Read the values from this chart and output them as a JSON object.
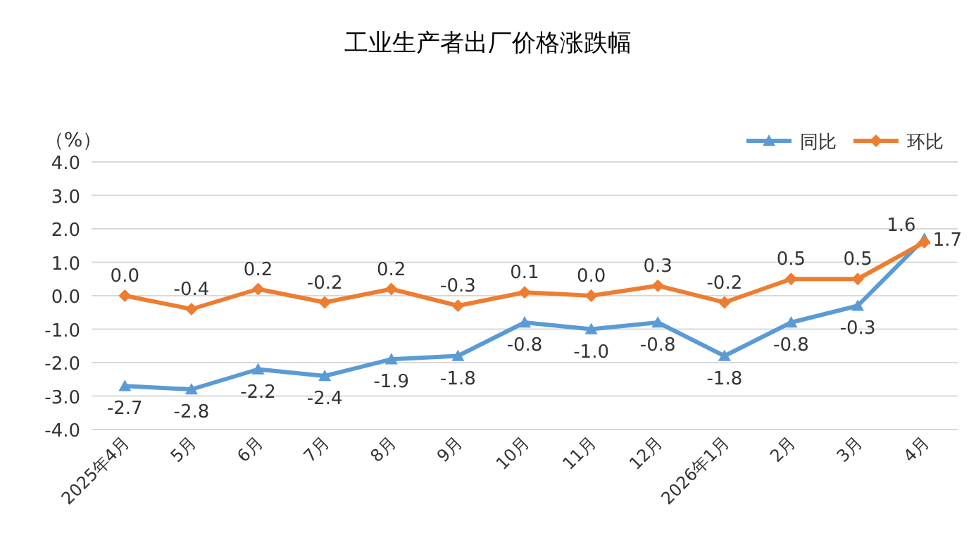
{
  "chart_data": {
    "type": "line",
    "title": "工业生产者出厂价格涨跌幅",
    "ylabel": "（%）",
    "categories": [
      "2025年4月",
      "5月",
      "6月",
      "7月",
      "8月",
      "9月",
      "10月",
      "11月",
      "12月",
      "2026年1月",
      "2月",
      "3月",
      "4月"
    ],
    "series": [
      {
        "name": "同比",
        "color": "#5b9bd5",
        "marker": "triangle",
        "values": [
          -2.7,
          -2.8,
          -2.2,
          -2.4,
          -1.9,
          -1.8,
          -0.8,
          -1.0,
          -0.8,
          -1.8,
          -0.8,
          -0.3,
          1.7
        ],
        "value_labels": [
          "-2.7",
          "-2.8",
          "-2.2",
          "-2.4",
          "-1.9",
          "-1.8",
          "-0.8",
          "-1.0",
          "-0.8",
          "-1.8",
          "-0.8",
          "-0.3",
          "1.7"
        ]
      },
      {
        "name": "环比",
        "color": "#ed7d31",
        "marker": "diamond",
        "values": [
          0.0,
          -0.4,
          0.2,
          -0.2,
          0.2,
          -0.3,
          0.1,
          0.0,
          0.3,
          -0.2,
          0.5,
          0.5,
          1.6
        ],
        "value_labels": [
          "0.0",
          "-0.4",
          "0.2",
          "-0.2",
          "0.2",
          "-0.3",
          "0.1",
          "0.0",
          "0.3",
          "-0.2",
          "0.5",
          "0.5",
          "1.6"
        ]
      }
    ],
    "ylim": [
      -4,
      4
    ],
    "yticks": [
      {
        "value": -4,
        "label": "-4.0"
      },
      {
        "value": -3,
        "label": "-3.0"
      },
      {
        "value": -2,
        "label": "-2.0"
      },
      {
        "value": -1,
        "label": "-1.0"
      },
      {
        "value": 0,
        "label": "0.0"
      },
      {
        "value": 1,
        "label": "1.0"
      },
      {
        "value": 2,
        "label": "2.0"
      },
      {
        "value": 3,
        "label": "3.0"
      },
      {
        "value": 4,
        "label": "4.0"
      }
    ],
    "grid": "y",
    "legend": "top right",
    "line_style": "solid"
  }
}
